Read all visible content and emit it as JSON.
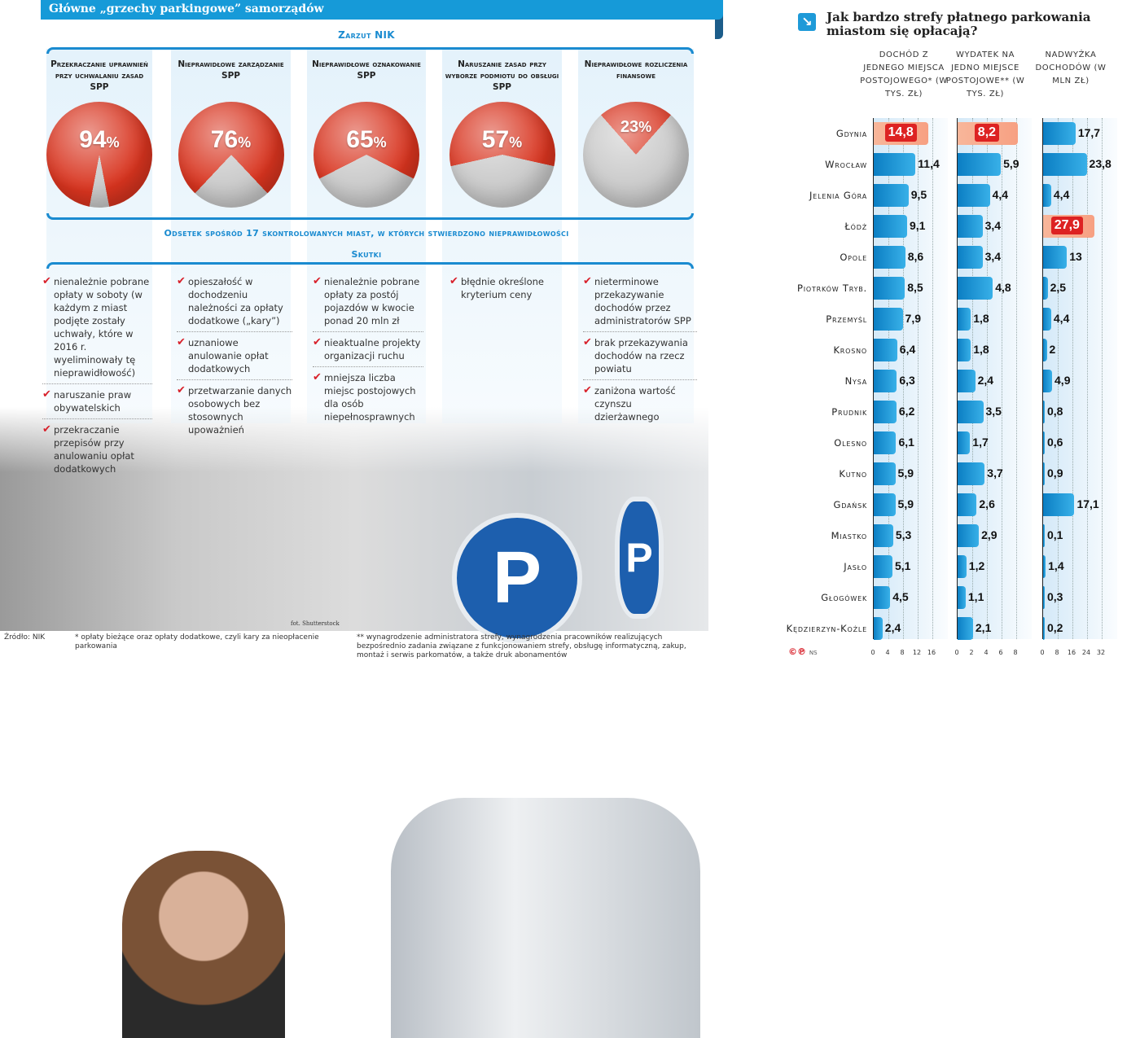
{
  "left": {
    "title": "Główne „grzechy parkingowe” samorządów",
    "zarzut_label": "Zarzut NIK",
    "percent_label": "Odsetek spośród 17 skontrolowanych miast, w których stwierdzono nieprawidłowości",
    "skutki_label": "Skutki",
    "percent_sign": "%",
    "colors": {
      "accent": "#1a8bd0",
      "red": "#d8202a",
      "gray": "#c8c8c8"
    },
    "columns": [
      {
        "title": "Przekraczanie uprawnień przy uchwalaniu zasad SPP",
        "percent": 94,
        "percent_text": "94",
        "effects": [
          "nienależnie pobrane opłaty w soboty (w każdym z miast podjęte zostały uchwały, które w 2016 r. wyeliminowały tę nieprawidłowość)",
          "naruszanie praw obywatelskich",
          "przekraczanie przepisów przy anulowaniu opłat dodatkowych"
        ]
      },
      {
        "title": "Nieprawidłowe zarządzanie SPP",
        "percent": 76,
        "percent_text": "76",
        "effects": [
          "opieszałość w dochodzeniu należności za opłaty dodatkowe („kary”)",
          "uznaniowe anulowanie opłat dodatkowych",
          "przetwarzanie danych osobowych bez stosownych upoważnień"
        ]
      },
      {
        "title": "Nieprawidłowe oznakowanie SPP",
        "percent": 65,
        "percent_text": "65",
        "effects": [
          "nienależnie pobrane opłaty za postój pojazdów w kwocie ponad 20 mln zł",
          "nieaktualne projekty organizacji ruchu",
          "mniejsza liczba miejsc postojowych dla osób niepełnosprawnych"
        ]
      },
      {
        "title": "Naruszanie zasad przy wyborze podmiotu do obsługi SPP",
        "percent": 57,
        "percent_text": "57",
        "effects": [
          "błędnie określone kryterium ceny"
        ]
      },
      {
        "title": "Nieprawidłowe rozliczenia finansowe",
        "percent": 23,
        "percent_text": "23",
        "effects": [
          "nieterminowe przekazywanie dochodów przez administratorów SPP",
          "brak przekazywania dochodów na rzecz powiatu",
          "zaniżona wartość czynszu dzierżawnego"
        ]
      }
    ],
    "photo_credit": "fot. Shutterstock",
    "meter_icon": "P"
  },
  "footer": {
    "source": "Źródło: NIK",
    "note1": "* opłaty bieżące oraz opłaty dodatkowe, czyli kary za nieopłacenie parkowania",
    "note2": "** wynagrodzenie administratora strefy, wynagrodzenia pracowników realizujących bezpośrednio zadania związane z funkcjonowaniem strefy, obsługę informatyczną, zakup, montaż i serwis parkomatów, a także druk abonamentów"
  },
  "right": {
    "icon": "arrow-down-right-icon",
    "title": "Jak bardzo strefy płatnego parkowania miastom się opłacają?",
    "logo": "©℗",
    "logo_initials": "NS"
  },
  "chart_data": {
    "type": "bar",
    "orientation": "horizontal",
    "grid": true,
    "categories": [
      "Gdynia",
      "Wrocław",
      "Jelenia Góra",
      "Łódź",
      "Opole",
      "Piotrków Tryb.",
      "Przemyśl",
      "Krosno",
      "Nysa",
      "Prudnik",
      "Olesno",
      "Kutno",
      "Gdańsk",
      "Miastko",
      "Jasło",
      "Głogówek",
      "Kędzierzyn-Koźle"
    ],
    "series": [
      {
        "name": "Dochód z jednego miejsca postojowego* (w tys. zł)",
        "values": [
          14.8,
          11.4,
          9.5,
          9.1,
          8.6,
          8.5,
          7.9,
          6.4,
          6.3,
          6.2,
          6.1,
          5.9,
          5.9,
          5.3,
          5.1,
          4.5,
          2.4
        ],
        "labels": [
          "14,8",
          "11,4",
          "9,5",
          "9,1",
          "8,6",
          "8,5",
          "7,9",
          "6,4",
          "6,3",
          "6,2",
          "6,1",
          "5,9",
          "5,9",
          "5,3",
          "5,1",
          "4,5",
          "2,4"
        ],
        "xlim": [
          0,
          16
        ],
        "ticks": [
          "0",
          "4",
          "8",
          "12",
          "16"
        ],
        "highlight": [
          "Gdynia"
        ]
      },
      {
        "name": "Wydatek na jedno miejsce postojowe** (w tys. zł)",
        "values": [
          8.2,
          5.9,
          4.4,
          3.4,
          3.4,
          4.8,
          1.8,
          1.8,
          2.4,
          3.5,
          1.7,
          3.7,
          2.6,
          2.9,
          1.2,
          1.1,
          2.1
        ],
        "labels": [
          "8,2",
          "5,9",
          "4,4",
          "3,4",
          "3,4",
          "4,8",
          "1,8",
          "1,8",
          "2,4",
          "3,5",
          "1,7",
          "3,7",
          "2,6",
          "2,9",
          "1,2",
          "1,1",
          "2,1"
        ],
        "xlim": [
          0,
          8
        ],
        "ticks": [
          "0",
          "2",
          "4",
          "6",
          "8"
        ],
        "highlight": [
          "Gdynia"
        ]
      },
      {
        "name": "Nadwyżka dochodów (w mln zł)",
        "values": [
          17.7,
          23.8,
          4.4,
          27.9,
          13,
          2.5,
          4.4,
          2,
          4.9,
          0.8,
          0.6,
          0.9,
          17.1,
          0.1,
          1.4,
          0.3,
          0.2
        ],
        "labels": [
          "17,7",
          "23,8",
          "4,4",
          "27,9",
          "13",
          "2,5",
          "4,4",
          "2",
          "4,9",
          "0,8",
          "0,6",
          "0,9",
          "17,1",
          "0,1",
          "1,4",
          "0,3",
          "0,2"
        ],
        "xlim": [
          0,
          32
        ],
        "ticks": [
          "0",
          "8",
          "16",
          "24",
          "32"
        ],
        "highlight": [
          "Łódź"
        ]
      }
    ],
    "colors": {
      "bar": "#1a8fd0",
      "highlight": "#d8202a"
    }
  }
}
